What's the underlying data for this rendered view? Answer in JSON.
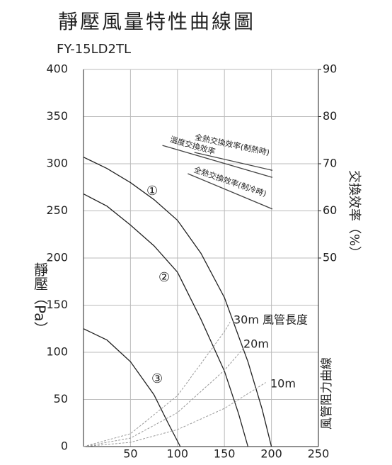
{
  "chart_data": {
    "type": "line",
    "title": "靜壓風量特性曲線圖",
    "subtitle": "FY-15LD2TL",
    "y_label": "靜壓（Pa）",
    "y2_label": "交換效率（%）",
    "duct_label": "風管阻力曲線",
    "xlim": [
      0,
      250
    ],
    "xticks": [
      50,
      100,
      150,
      200,
      250
    ],
    "ylim": [
      0,
      400
    ],
    "yticks": [
      0,
      50,
      100,
      150,
      200,
      250,
      300,
      350,
      400
    ],
    "y2lim": [
      10,
      90
    ],
    "y2ticks": [
      50,
      60,
      70,
      80,
      90
    ],
    "grid": true,
    "series": [
      {
        "name": "①",
        "color": "#222222",
        "x": [
          0,
          25,
          50,
          75,
          100,
          125,
          150,
          175,
          190,
          200
        ],
        "values": [
          307,
          295,
          280,
          262,
          240,
          205,
          158,
          90,
          40,
          0
        ]
      },
      {
        "name": "②",
        "color": "#222222",
        "x": [
          0,
          25,
          50,
          75,
          100,
          125,
          150,
          165,
          175
        ],
        "values": [
          268,
          255,
          235,
          213,
          185,
          135,
          80,
          35,
          0
        ]
      },
      {
        "name": "③",
        "color": "#222222",
        "x": [
          0,
          25,
          50,
          75,
          90,
          103
        ],
        "values": [
          125,
          113,
          90,
          55,
          25,
          0
        ]
      },
      {
        "name": "30m 風管長度",
        "color": "#999999",
        "dashed": true,
        "x": [
          0,
          50,
          100,
          150,
          156
        ],
        "values": [
          0,
          13.6,
          54,
          122,
          132
        ]
      },
      {
        "name": "20m",
        "color": "#999999",
        "dashed": true,
        "x": [
          0,
          50,
          100,
          150,
          171
        ],
        "values": [
          0,
          9,
          36,
          81,
          105
        ]
      },
      {
        "name": "10m",
        "color": "#999999",
        "dashed": true,
        "x": [
          0,
          50,
          100,
          150,
          194
        ],
        "values": [
          0,
          4.5,
          18,
          40.5,
          68
        ]
      },
      {
        "name": "全熱交換效率(制熱時)",
        "color": "#444444",
        "axis": "y2",
        "x": [
          118,
          201
        ],
        "values": [
          72.4,
          68.6
        ]
      },
      {
        "name": "溫度交換效率",
        "color": "#444444",
        "axis": "y2",
        "x": [
          84,
          201
        ],
        "values": [
          73.9,
          67.1
        ]
      },
      {
        "name": "全熱交換效率(制冷時)",
        "color": "#444444",
        "axis": "y2",
        "x": [
          111,
          201
        ],
        "values": [
          67.9,
          60.4
        ]
      }
    ]
  }
}
